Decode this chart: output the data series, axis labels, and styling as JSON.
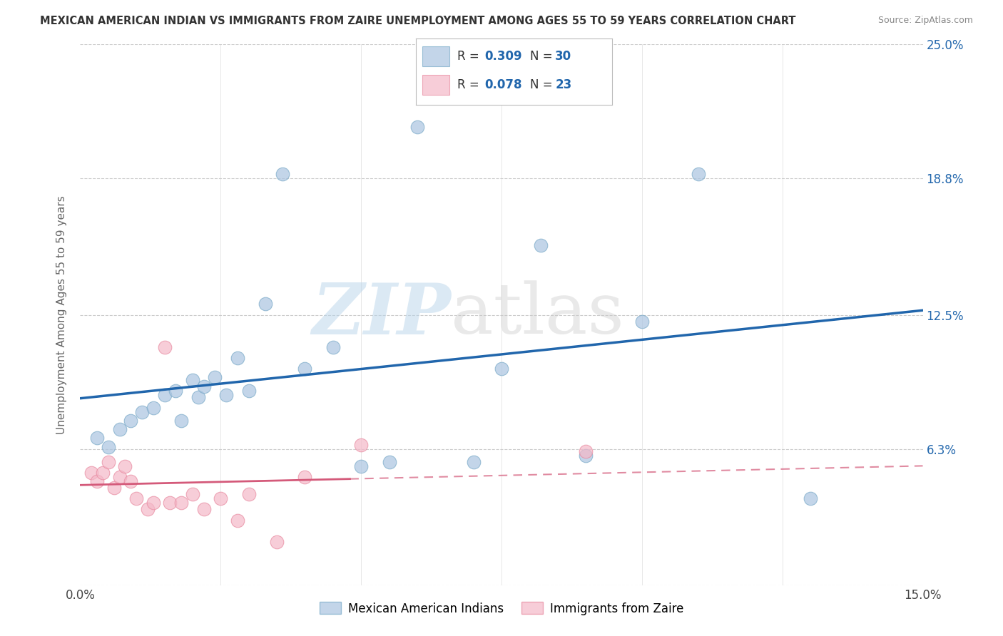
{
  "title": "MEXICAN AMERICAN INDIAN VS IMMIGRANTS FROM ZAIRE UNEMPLOYMENT AMONG AGES 55 TO 59 YEARS CORRELATION CHART",
  "source": "Source: ZipAtlas.com",
  "ylabel": "Unemployment Among Ages 55 to 59 years",
  "xlim": [
    0.0,
    0.15
  ],
  "ylim": [
    0.0,
    0.25
  ],
  "xtick_values": [
    0.0,
    0.025,
    0.05,
    0.075,
    0.1,
    0.125,
    0.15
  ],
  "xticklabels": [
    "0.0%",
    "",
    "",
    "",
    "",
    "",
    "15.0%"
  ],
  "ytick_values": [
    0.0,
    0.063,
    0.125,
    0.188,
    0.25
  ],
  "ytick_labels_left": [
    "",
    "",
    "",
    "",
    ""
  ],
  "ytick_labels_right": [
    "",
    "6.3%",
    "12.5%",
    "18.8%",
    "25.0%"
  ],
  "blue_scatter_x": [
    0.003,
    0.005,
    0.007,
    0.009,
    0.011,
    0.013,
    0.015,
    0.017,
    0.018,
    0.02,
    0.021,
    0.022,
    0.024,
    0.026,
    0.028,
    0.03,
    0.033,
    0.036,
    0.04,
    0.045,
    0.05,
    0.055,
    0.06,
    0.07,
    0.075,
    0.082,
    0.09,
    0.1,
    0.11,
    0.13
  ],
  "blue_scatter_y": [
    0.068,
    0.064,
    0.072,
    0.076,
    0.08,
    0.082,
    0.088,
    0.09,
    0.076,
    0.095,
    0.087,
    0.092,
    0.096,
    0.088,
    0.105,
    0.09,
    0.13,
    0.19,
    0.1,
    0.11,
    0.055,
    0.057,
    0.212,
    0.057,
    0.1,
    0.157,
    0.06,
    0.122,
    0.19,
    0.04
  ],
  "pink_scatter_x": [
    0.002,
    0.003,
    0.004,
    0.005,
    0.006,
    0.007,
    0.008,
    0.009,
    0.01,
    0.012,
    0.013,
    0.015,
    0.016,
    0.018,
    0.02,
    0.022,
    0.025,
    0.028,
    0.03,
    0.035,
    0.04,
    0.05,
    0.09
  ],
  "pink_scatter_y": [
    0.052,
    0.048,
    0.052,
    0.057,
    0.045,
    0.05,
    0.055,
    0.048,
    0.04,
    0.035,
    0.038,
    0.11,
    0.038,
    0.038,
    0.042,
    0.035,
    0.04,
    0.03,
    0.042,
    0.02,
    0.05,
    0.065,
    0.062
  ],
  "blue_R": 0.309,
  "blue_N": 30,
  "pink_R": 0.078,
  "pink_N": 23,
  "blue_scatter_color": "#aac4e0",
  "pink_scatter_color": "#f4b8c8",
  "blue_edge_color": "#7aaac8",
  "pink_edge_color": "#e88aa0",
  "blue_line_color": "#2166ac",
  "pink_line_color": "#d45a7a",
  "right_tick_color": "#2166ac",
  "legend_label_blue": "Mexican American Indians",
  "legend_label_pink": "Immigrants from Zaire",
  "background_color": "#ffffff",
  "grid_color": "#cccccc",
  "title_color": "#333333",
  "source_color": "#888888",
  "ylabel_color": "#666666"
}
